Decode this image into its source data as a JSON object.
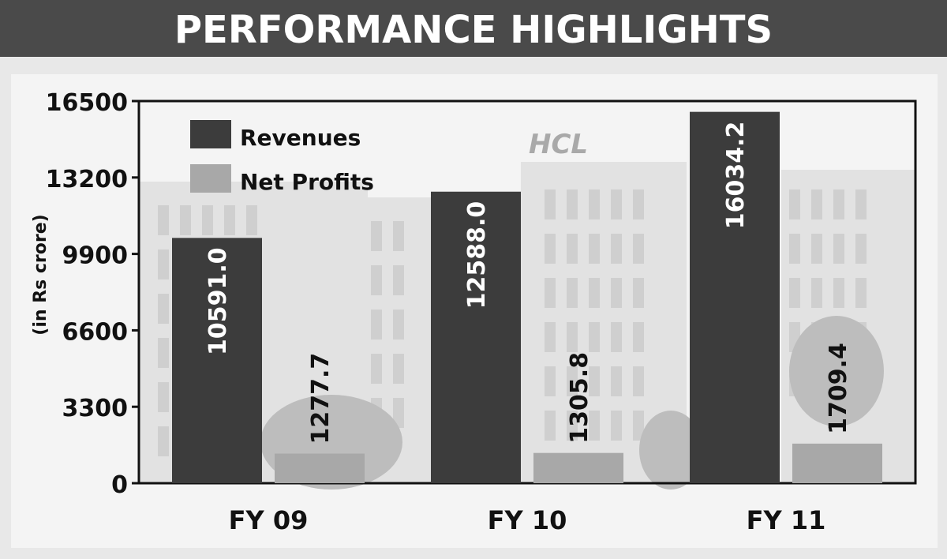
{
  "header": {
    "title": "PERFORMANCE HIGHLIGHTS",
    "background_color": "#4a4a4a"
  },
  "background_image": {
    "logo_text": "HCL"
  },
  "chart_data": {
    "type": "bar",
    "title": "PERFORMANCE HIGHLIGHTS",
    "ylabel": "(in Rs crore)",
    "xlabel": "",
    "categories": [
      "FY 09",
      "FY 10",
      "FY 11"
    ],
    "series": [
      {
        "name": "Revenues",
        "values": [
          10591.0,
          12588.0,
          16034.2
        ],
        "labels": [
          "10591.0",
          "12588.0",
          "16034.2"
        ],
        "color": "#3c3c3c"
      },
      {
        "name": "Net Profits",
        "values": [
          1277.7,
          1305.8,
          1709.4
        ],
        "labels": [
          "1277.7",
          "1305.8",
          "1709.4"
        ],
        "color": "#a8a8a8"
      }
    ],
    "yticks": [
      "0",
      "3300",
      "6600",
      "9900",
      "13200",
      "16500"
    ],
    "ylim": [
      0,
      16500
    ],
    "grid": false,
    "legend_position": "top-left"
  }
}
